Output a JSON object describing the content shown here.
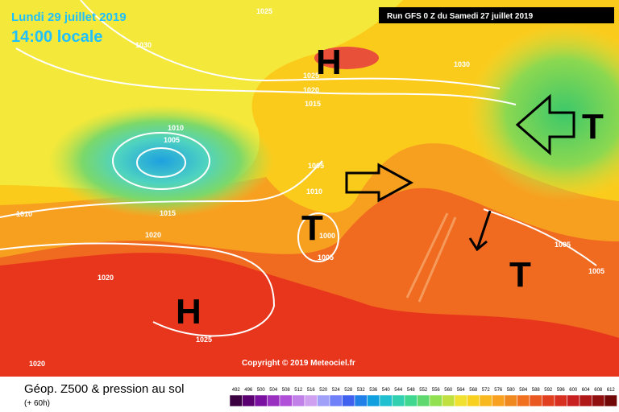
{
  "header": {
    "date": "Lundi 29 juillet 2019",
    "time": "14:00 locale",
    "run": "Run GFS 0 Z du Samedi 27 juillet 2019"
  },
  "copyright": "Copyright © 2019 Meteociel.fr",
  "legend": {
    "title": "Géop. Z500 & pression au sol",
    "subtitle": "(+ 60h)",
    "scale": [
      492,
      496,
      500,
      504,
      508,
      512,
      516,
      520,
      524,
      528,
      532,
      536,
      540,
      544,
      548,
      552,
      556,
      560,
      564,
      568,
      572,
      576,
      580,
      584,
      588,
      592,
      596,
      600,
      604,
      608,
      612
    ]
  },
  "isobars": [
    "1025",
    "1030",
    "1030",
    "1025",
    "1020",
    "1015",
    "1010",
    "1005",
    "1005",
    "1010",
    "1010",
    "1015",
    "1020",
    "1000",
    "1005",
    "1020",
    "1025",
    "1020",
    "1005",
    "1005"
  ],
  "systems": [
    "H",
    "T",
    "T",
    "H",
    "T"
  ]
}
